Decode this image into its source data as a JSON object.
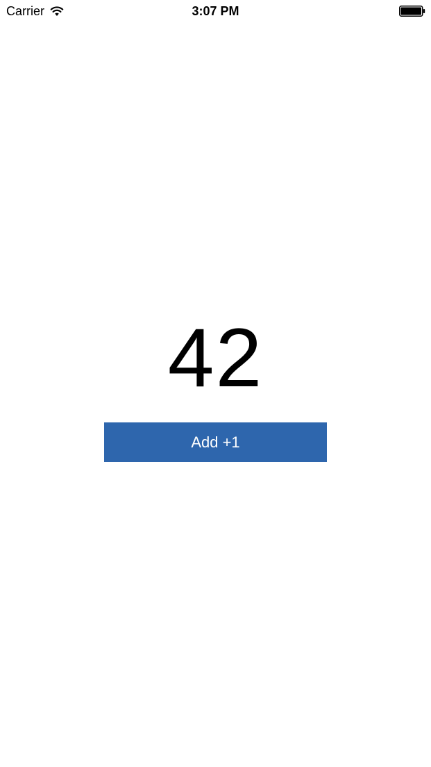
{
  "status_bar": {
    "carrier": "Carrier",
    "time": "3:07 PM",
    "wifi_icon": "wifi-icon",
    "battery_icon": "battery-full-icon"
  },
  "counter": {
    "value": "42"
  },
  "actions": {
    "add_label": "Add +1",
    "button_color": "#2E66AD"
  }
}
